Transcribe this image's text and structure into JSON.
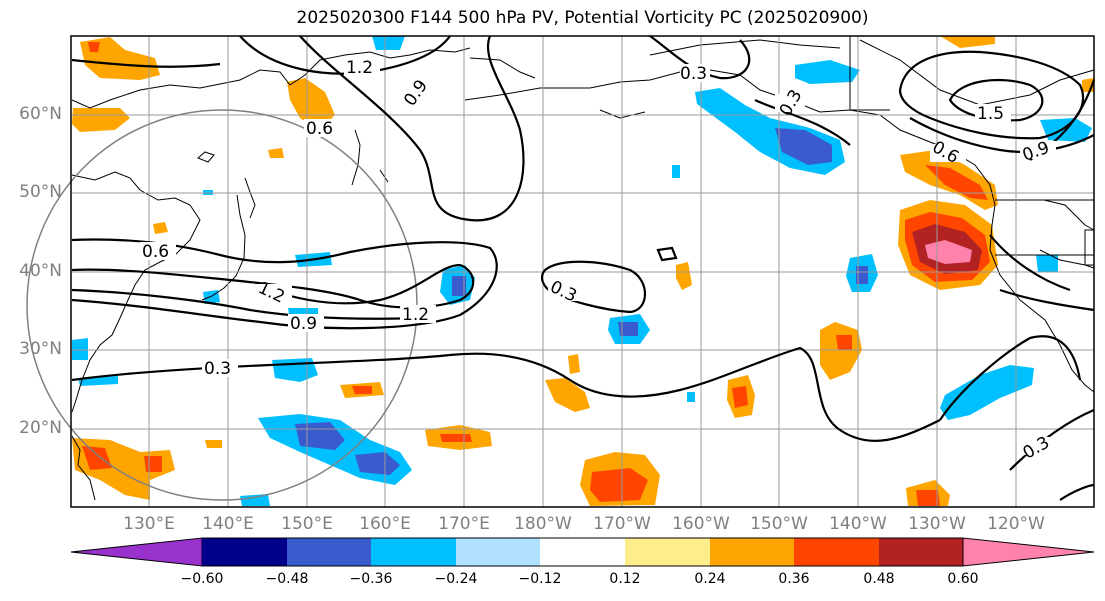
{
  "title": "2025020300 F144 500 hPa PV, Potential Vorticity PC (2025020900)",
  "lat_labels": [
    "60°N",
    "50°N",
    "40°N",
    "30°N",
    "20°N"
  ],
  "lon_labels": [
    "130°E",
    "140°E",
    "150°E",
    "160°E",
    "170°E",
    "180°W",
    "170°W",
    "160°W",
    "150°W",
    "140°W",
    "130°W",
    "120°W"
  ],
  "contour_labels": [
    "1.2",
    "0.9",
    "0.6",
    "0.3",
    "0.6",
    "1.2",
    "0.9",
    "1.2",
    "0.3",
    "0.3",
    "1.5",
    "0.9",
    "0.6",
    "0.3",
    "0.3"
  ],
  "colorbar": {
    "tick_labels": [
      "−0.60",
      "−0.48",
      "−0.36",
      "−0.24",
      "−0.12",
      "0.12",
      "0.24",
      "0.36",
      "0.48",
      "0.60"
    ],
    "colors": [
      "#9932cc",
      "#00008b",
      "#3a5bcd",
      "#00bfff",
      "#b0e2ff",
      "#ffffff",
      "#ffec8b",
      "#ffa500",
      "#ff4500",
      "#b22222",
      "#ff82ab"
    ]
  }
}
